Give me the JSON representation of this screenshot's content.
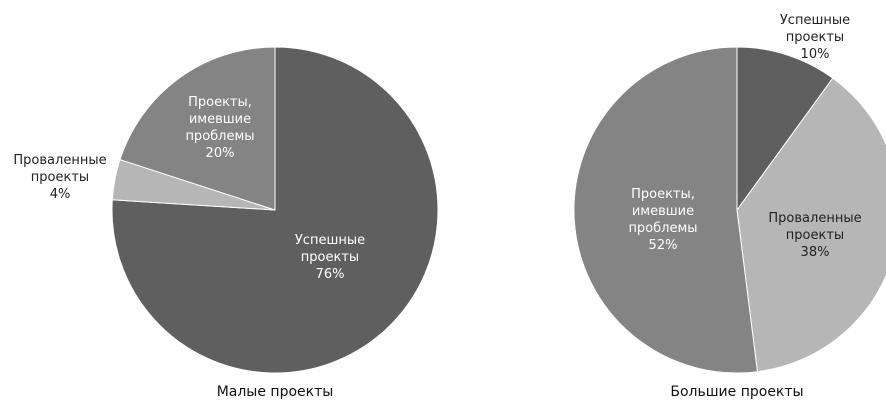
{
  "chart_data": [
    {
      "type": "pie",
      "title": "Малые проекты",
      "slices": [
        {
          "label": [
            "Успешные",
            "проекты"
          ],
          "value": 76,
          "value_label": "76%",
          "color": "#5f5f5f",
          "text_color": "#ffffff"
        },
        {
          "label": [
            "Проваленные",
            "проекты"
          ],
          "value": 4,
          "value_label": "4%",
          "color": "#b6b6b6",
          "text_color": "#222222"
        },
        {
          "label": [
            "Проекты,",
            "имевшие",
            "проблемы"
          ],
          "value": 20,
          "value_label": "20%",
          "color": "#848484",
          "text_color": "#ffffff"
        }
      ]
    },
    {
      "type": "pie",
      "title": "Большие проекты",
      "slices": [
        {
          "label": [
            "Успешные",
            "проекты"
          ],
          "value": 10,
          "value_label": "10%",
          "color": "#5f5f5f",
          "text_color": "#222222"
        },
        {
          "label": [
            "Проваленные",
            "проекты"
          ],
          "value": 38,
          "value_label": "38%",
          "color": "#b6b6b6",
          "text_color": "#222222"
        },
        {
          "label": [
            "Проекты,",
            "имевшие",
            "проблемы"
          ],
          "value": 52,
          "value_label": "52%",
          "color": "#848484",
          "text_color": "#ffffff"
        }
      ]
    }
  ]
}
